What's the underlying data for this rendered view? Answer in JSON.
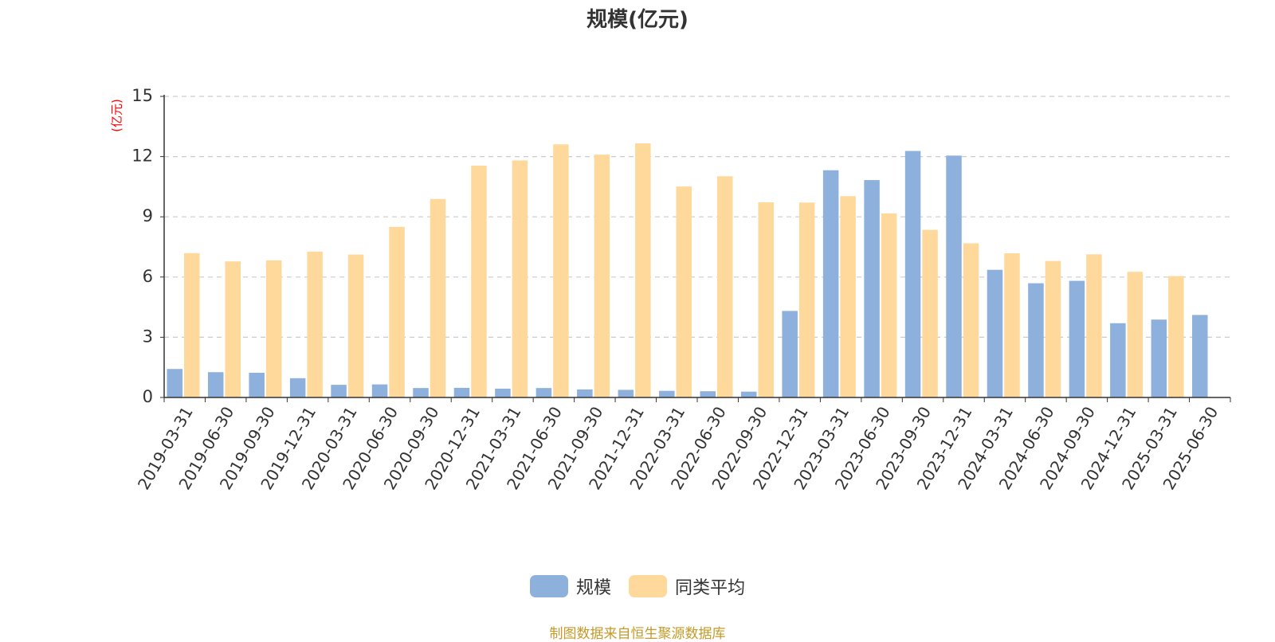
{
  "chart_data": {
    "type": "bar",
    "title": "规模(亿元)",
    "ylabel": "(亿元)",
    "xlabel": "",
    "ylim": [
      0,
      15
    ],
    "yticks": [
      0,
      3,
      6,
      9,
      12,
      15
    ],
    "grid": true,
    "legend_position": "bottom-center",
    "categories": [
      "2019-03-31",
      "2019-06-30",
      "2019-09-30",
      "2019-12-31",
      "2020-03-31",
      "2020-06-30",
      "2020-09-30",
      "2020-12-31",
      "2021-03-31",
      "2021-06-30",
      "2021-09-30",
      "2021-12-31",
      "2022-03-31",
      "2022-06-30",
      "2022-09-30",
      "2022-12-31",
      "2023-03-31",
      "2023-06-30",
      "2023-09-30",
      "2023-12-31",
      "2024-03-31",
      "2024-06-30",
      "2024-09-30",
      "2024-12-31",
      "2025-03-31",
      "2025-06-30"
    ],
    "series": [
      {
        "name": "规模",
        "color": "#8eb0dc",
        "values": [
          1.42,
          1.26,
          1.23,
          0.96,
          0.63,
          0.65,
          0.47,
          0.48,
          0.44,
          0.47,
          0.4,
          0.38,
          0.33,
          0.31,
          0.29,
          4.31,
          11.32,
          10.83,
          12.28,
          12.05,
          6.36,
          5.69,
          5.81,
          3.7,
          3.88,
          4.11
        ]
      },
      {
        "name": "同类平均",
        "color": "#fed99b",
        "values": [
          7.19,
          6.78,
          6.83,
          7.27,
          7.12,
          8.5,
          9.89,
          11.55,
          11.81,
          12.61,
          12.1,
          12.66,
          10.51,
          11.02,
          9.72,
          9.71,
          10.03,
          9.17,
          8.35,
          7.68,
          7.18,
          6.8,
          7.13,
          6.26,
          6.05,
          null
        ]
      }
    ]
  },
  "source_note": "制图数据来自恒生聚源数据库"
}
